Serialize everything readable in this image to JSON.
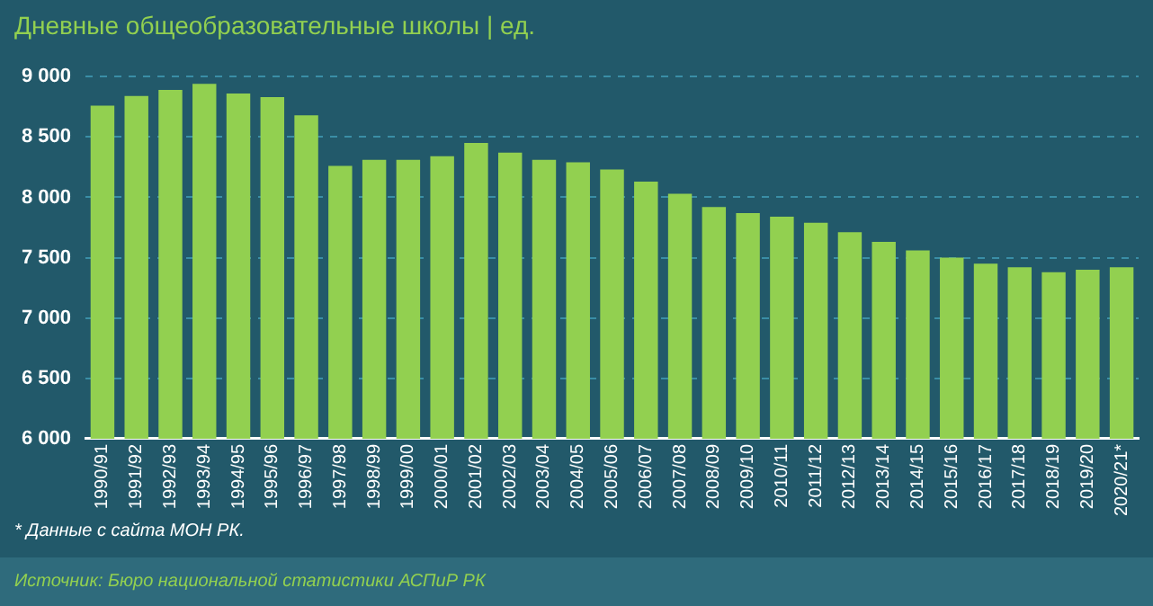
{
  "chart_data": {
    "type": "bar",
    "title": "Дневные общеобразовательные школы | ед.",
    "categories": [
      "1990/91",
      "1991/92",
      "1992/93",
      "1993/94",
      "1994/95",
      "1995/96",
      "1996/97",
      "1997/98",
      "1998/99",
      "1999/00",
      "2000/01",
      "2001/02",
      "2002/03",
      "2003/04",
      "2004/05",
      "2005/06",
      "2006/07",
      "2007/08",
      "2008/09",
      "2009/10",
      "2010/11",
      "2011/12",
      "2012/13",
      "2013/14",
      "2014/15",
      "2015/16",
      "2016/17",
      "2017/18",
      "2018/19",
      "2019/20",
      "2020/21*"
    ],
    "values": [
      8760,
      8840,
      8890,
      8940,
      8860,
      8830,
      8680,
      8260,
      8310,
      8310,
      8340,
      8450,
      8370,
      8310,
      8290,
      8230,
      8130,
      8030,
      7920,
      7870,
      7840,
      7790,
      7710,
      7630,
      7560,
      7500,
      7450,
      7420,
      7380,
      7400,
      7420
    ],
    "color": "#92d050",
    "ylim": [
      6000,
      9000
    ],
    "yticks": [
      {
        "value": 6000,
        "label": "6 000"
      },
      {
        "value": 6500,
        "label": "6 500"
      },
      {
        "value": 7000,
        "label": "7 000"
      },
      {
        "value": 7500,
        "label": "7 500"
      },
      {
        "value": 8000,
        "label": "8 000"
      },
      {
        "value": 8500,
        "label": "8 500"
      },
      {
        "value": 9000,
        "label": "9 000"
      }
    ],
    "grid": "y",
    "legend": false,
    "annotations": [
      "* Данные с сайта МОН РК.",
      "Источник: Бюро национальной статистики АСПиР РК"
    ]
  }
}
